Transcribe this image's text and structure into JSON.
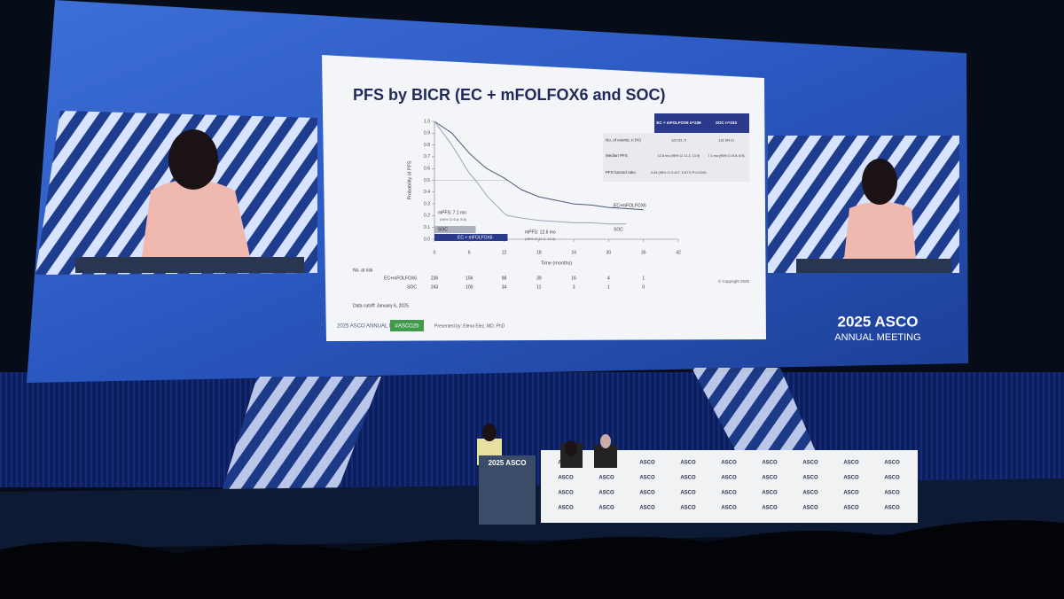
{
  "slide": {
    "title": "PFS by BICR (EC + mFOLFOX6 and SOC)",
    "table": {
      "headers": [
        "EC + mFOLFOX6 n=236",
        "SOC n=243"
      ],
      "rows": [
        [
          "No. of events, n (%)",
          "122 (51.7)",
          "132 (54.3)"
        ],
        [
          "Median PFS",
          "12.6 mo (95% CI 11.2, 13.9)",
          "7.1 mo (95% CI 6.8, 8.5)"
        ],
        [
          "PFS hazard ratio",
          "0.53 (95% CI 0.427, 0.677) P<0.0001",
          ""
        ]
      ]
    },
    "data_cutoff": "Data cutoff: January 6, 2025.",
    "copyright": "© Copyright 2025",
    "hashtag": "#ASCO25",
    "presenter": "Presented by: Elena Elez, MD, PhD",
    "meeting_logo": "2025 ASCO ANNUAL MEETING"
  },
  "chart_data": {
    "type": "line",
    "y_label": "Probability of PFS",
    "x_label": "Time (months)",
    "x": [
      0,
      3,
      6,
      7.1,
      9,
      12,
      12.6,
      15,
      18,
      21,
      24,
      27,
      30,
      33,
      36
    ],
    "series": [
      {
        "name": "EC+mFOLFOX6",
        "color": "#4a5a7a",
        "values": [
          1.0,
          0.9,
          0.73,
          0.68,
          0.6,
          0.52,
          0.5,
          0.42,
          0.36,
          0.33,
          0.3,
          0.29,
          0.27,
          0.26,
          0.25
        ]
      },
      {
        "name": "SOC",
        "color": "#9aa3b5",
        "values": [
          1.0,
          0.8,
          0.56,
          0.5,
          0.37,
          0.22,
          0.2,
          0.18,
          0.16,
          0.15,
          0.14,
          0.14,
          0.13,
          0.13,
          null
        ]
      }
    ],
    "xlim": [
      0,
      42
    ],
    "xticks": [
      0,
      6,
      12,
      18,
      24,
      30,
      36,
      42
    ],
    "ylim": [
      0,
      1
    ],
    "yticks": [
      {
        "value": 0,
        "label": "0.0"
      },
      0.1,
      0.2,
      0.3,
      0.4,
      0.5,
      0.6,
      0.7,
      0.8,
      0.9,
      {
        "value": 1,
        "label": "1.0"
      }
    ],
    "annotations": [
      "mPFS: 7.1 mo",
      "(95% CI 6.8, 8.5)",
      "mPFS: 12.6 mo",
      "(95% CI 11.2, 13.9)",
      "SOC",
      "EC + mFOLFOX6"
    ],
    "at_risk": {
      "title": "No. at risk",
      "times": [
        0,
        6,
        12,
        18,
        24,
        30,
        36
      ],
      "rows": [
        {
          "name": "EC+mFOLFOX6",
          "values": [
            236,
            156,
            98,
            39,
            16,
            4,
            1
          ]
        },
        {
          "name": "SOC",
          "values": [
            243,
            100,
            34,
            11,
            3,
            1,
            0
          ]
        }
      ]
    }
  },
  "screen": {
    "logo_year_brand": "2025 ASCO",
    "logo_meeting": "ANNUAL MEETING"
  },
  "stage": {
    "podium_logo": "2025 ASCO",
    "table_logo": "ASCO"
  }
}
